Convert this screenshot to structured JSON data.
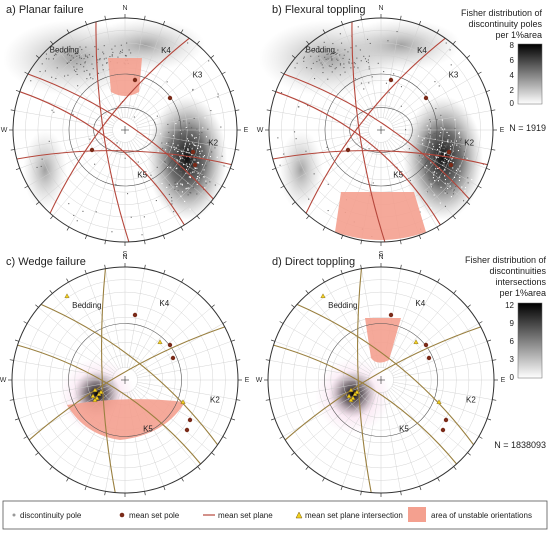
{
  "panels": [
    {
      "title": "a)   Planar failure",
      "labels": [
        "Bedding",
        "K4",
        "K3",
        "K2",
        "K5"
      ],
      "compass": [
        "N",
        "E",
        "S",
        "W"
      ]
    },
    {
      "title": "b)   Flexural toppling",
      "labels": [
        "Bedding",
        "K4",
        "K3",
        "K2",
        "K5"
      ],
      "compass": [
        "N",
        "E",
        "S",
        "W"
      ]
    },
    {
      "title": "c)   Wedge failure",
      "labels": [
        "Bedding",
        "K4",
        "K2",
        "K5"
      ],
      "compass": [
        "N",
        "E",
        "S",
        "W"
      ]
    },
    {
      "title": "d)   Direct toppling",
      "labels": [
        "Bedding",
        "K4",
        "K2",
        "K5"
      ],
      "compass": [
        "N",
        "E",
        "S",
        "W"
      ]
    }
  ],
  "colorbar_poles": {
    "title": [
      "Fisher distribution of",
      "discontinuity poles",
      "per 1%area"
    ],
    "ticks": [
      "8",
      "6",
      "4",
      "2",
      "0"
    ],
    "count": "N = 1919"
  },
  "colorbar_intersections": {
    "title": [
      "Fisher distribution of",
      "discontinuities",
      "intersections",
      "per 1%area"
    ],
    "ticks": [
      "12",
      "9",
      "6",
      "3",
      "0"
    ],
    "count": "N = 1838093"
  },
  "legend": [
    {
      "symbol": "dot-grey",
      "label": "discontinuity pole"
    },
    {
      "symbol": "dot-brown",
      "label": "mean set pole"
    },
    {
      "symbol": "line-red",
      "label": "mean set plane"
    },
    {
      "symbol": "triangle-yellow",
      "label": "mean set plane intersection"
    },
    {
      "symbol": "rect-salmon",
      "label": "area of unstable orientations"
    }
  ],
  "colors": {
    "plane": "#b5473c",
    "plane_olive": "#9a8040",
    "unstable": "#f4a08f",
    "mean_pole": "#7a2a18",
    "intersection": "#f2d21f",
    "grid": "#cfcfcf"
  }
}
